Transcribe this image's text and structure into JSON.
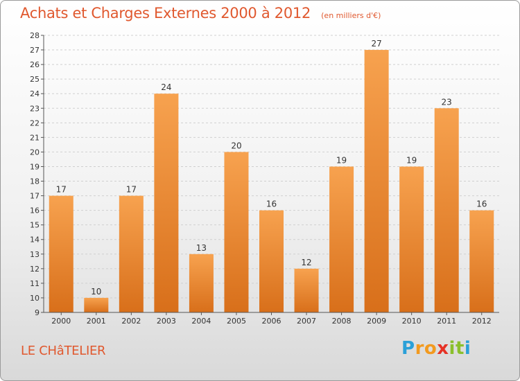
{
  "header": {
    "title": "Achats et Charges Externes 2000 à 2012",
    "subtitle": "(en milliers d'€)"
  },
  "footer": {
    "place": "LE CHâTELIER",
    "logo": {
      "letters": [
        "P",
        "r",
        "o",
        "x",
        "i",
        "t",
        "i"
      ],
      "colors": [
        "#2aa0d8",
        "#f29a1f",
        "#f29a1f",
        "#e63226",
        "#8bbf2c",
        "#8bbf2c",
        "#2aa0d8"
      ]
    }
  },
  "colors": {
    "bar_top": "#f7a24f",
    "bar_bottom": "#d86f1a",
    "axis": "#555555",
    "grid": "#cfcfcf",
    "text": "#333333"
  },
  "chart_data": {
    "type": "bar",
    "title": "Achats et Charges Externes 2000 à 2012",
    "subtitle": "(en milliers d'€)",
    "categories": [
      "2000",
      "2001",
      "2002",
      "2003",
      "2004",
      "2005",
      "2006",
      "2007",
      "2008",
      "2009",
      "2010",
      "2011",
      "2012"
    ],
    "values": [
      17,
      10,
      17,
      24,
      13,
      20,
      16,
      12,
      19,
      27,
      19,
      23,
      16
    ],
    "ylim": [
      9,
      28
    ],
    "yticks": [
      9,
      10,
      11,
      12,
      13,
      14,
      15,
      16,
      17,
      18,
      19,
      20,
      21,
      22,
      23,
      24,
      25,
      26,
      27,
      28
    ],
    "xlabel": "",
    "ylabel": "",
    "grid": true,
    "data_labels": true
  }
}
